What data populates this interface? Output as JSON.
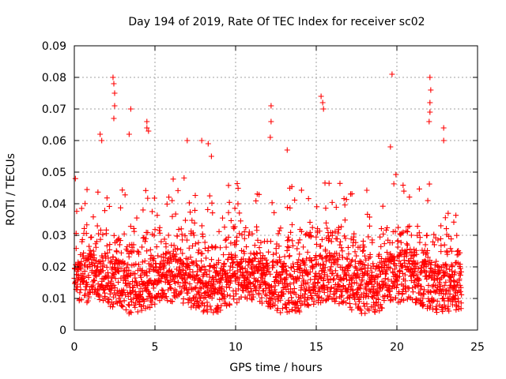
{
  "chart_data": {
    "type": "scatter",
    "title": "Day 194 of 2019, Rate Of TEC Index for receiver sc02",
    "xlabel": "GPS time / hours",
    "ylabel": "ROTI / TECUs",
    "xlim": [
      0,
      25
    ],
    "ylim": [
      0,
      0.09
    ],
    "xticks": [
      0,
      5,
      10,
      15,
      20,
      25
    ],
    "xtick_labels": [
      "0",
      "5",
      "10",
      "15",
      "20",
      "25"
    ],
    "yticks": [
      0,
      0.01,
      0.02,
      0.03,
      0.04,
      0.05,
      0.06,
      0.07,
      0.08,
      0.09
    ],
    "ytick_labels": [
      "0",
      "0.01",
      "0.02",
      "0.03",
      "0.04",
      "0.05",
      "0.06",
      "0.07",
      "0.08",
      "0.09"
    ],
    "grid": true,
    "marker": "+",
    "color": "#ff0000",
    "series": [
      {
        "name": "sc02",
        "data_range_x": [
          0,
          24
        ],
        "typical_band": [
          0.005,
          0.03
        ],
        "noise_seed": 194,
        "sample_count": 2400,
        "spikes": [
          {
            "x": 2.4,
            "y": 0.08
          },
          {
            "x": 2.45,
            "y": 0.078
          },
          {
            "x": 2.5,
            "y": 0.075
          },
          {
            "x": 2.5,
            "y": 0.071
          },
          {
            "x": 2.45,
            "y": 0.067
          },
          {
            "x": 3.5,
            "y": 0.07
          },
          {
            "x": 1.6,
            "y": 0.062
          },
          {
            "x": 1.7,
            "y": 0.06
          },
          {
            "x": 3.4,
            "y": 0.062
          },
          {
            "x": 4.5,
            "y": 0.066
          },
          {
            "x": 4.5,
            "y": 0.064
          },
          {
            "x": 4.6,
            "y": 0.063
          },
          {
            "x": 7.0,
            "y": 0.06
          },
          {
            "x": 7.9,
            "y": 0.06
          },
          {
            "x": 8.3,
            "y": 0.059
          },
          {
            "x": 8.5,
            "y": 0.055
          },
          {
            "x": 12.2,
            "y": 0.071
          },
          {
            "x": 12.2,
            "y": 0.066
          },
          {
            "x": 12.15,
            "y": 0.061
          },
          {
            "x": 13.2,
            "y": 0.057
          },
          {
            "x": 15.3,
            "y": 0.074
          },
          {
            "x": 15.4,
            "y": 0.072
          },
          {
            "x": 15.45,
            "y": 0.07
          },
          {
            "x": 19.7,
            "y": 0.081
          },
          {
            "x": 19.6,
            "y": 0.058
          },
          {
            "x": 22.05,
            "y": 0.08
          },
          {
            "x": 22.1,
            "y": 0.076
          },
          {
            "x": 22.05,
            "y": 0.072
          },
          {
            "x": 22.05,
            "y": 0.069
          },
          {
            "x": 22.0,
            "y": 0.066
          },
          {
            "x": 22.9,
            "y": 0.064
          },
          {
            "x": 22.9,
            "y": 0.06
          }
        ]
      }
    ]
  }
}
